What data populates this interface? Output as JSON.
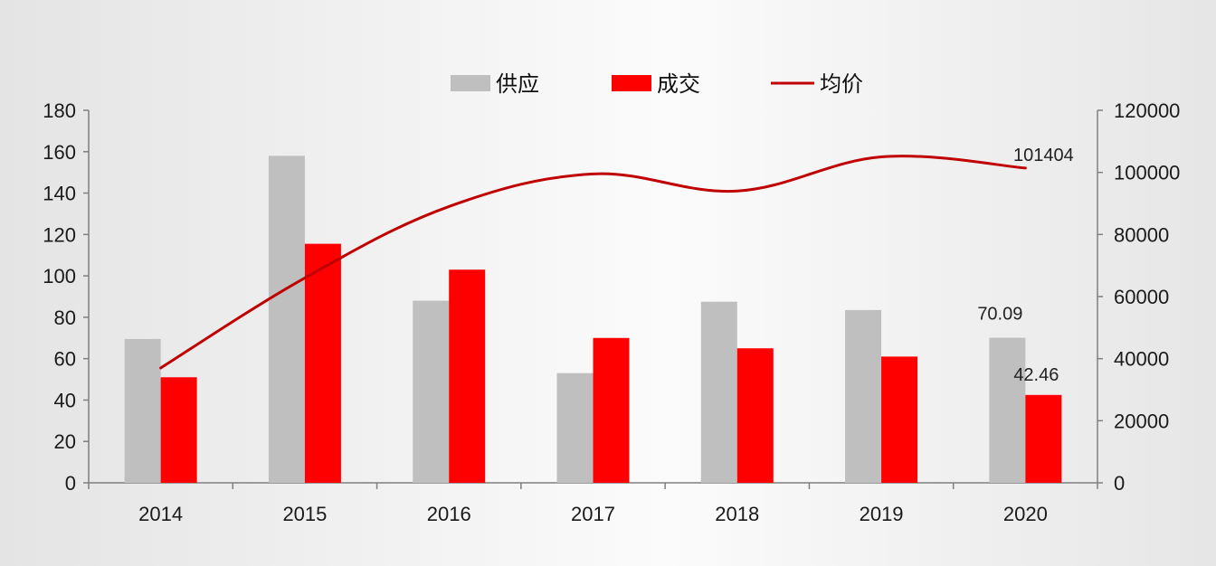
{
  "chart_data": {
    "type": "bar",
    "categories": [
      "2014",
      "2015",
      "2016",
      "2017",
      "2018",
      "2019",
      "2020"
    ],
    "series": [
      {
        "name": "供应",
        "kind": "bar",
        "axis": "left",
        "color": "#bfbfbf",
        "values": [
          69.5,
          158,
          88,
          53,
          87.5,
          83.5,
          70.09
        ]
      },
      {
        "name": "成交",
        "kind": "bar",
        "axis": "left",
        "color": "#ff0000",
        "values": [
          51,
          115.5,
          103,
          70,
          65,
          61,
          42.46
        ]
      },
      {
        "name": "均价",
        "kind": "line",
        "axis": "right",
        "color": "#c00000",
        "values": [
          37000,
          66000,
          89000,
          99500,
          94000,
          105000,
          101404
        ]
      }
    ],
    "y_left": {
      "min": 0,
      "max": 180,
      "ticks": [
        "0",
        "20",
        "40",
        "60",
        "80",
        "100",
        "120",
        "140",
        "160",
        "180"
      ]
    },
    "y_right": {
      "min": 0,
      "max": 120000,
      "ticks": [
        "0",
        "20000",
        "40000",
        "60000",
        "80000",
        "100000",
        "120000"
      ]
    },
    "annotations": [
      {
        "series": "供应",
        "category": "2020",
        "text": "70.09"
      },
      {
        "series": "成交",
        "category": "2020",
        "text": "42.46"
      },
      {
        "series": "均价",
        "category": "2020",
        "text": "101404"
      }
    ],
    "legend": {
      "position": "top-center"
    },
    "grid": false
  }
}
